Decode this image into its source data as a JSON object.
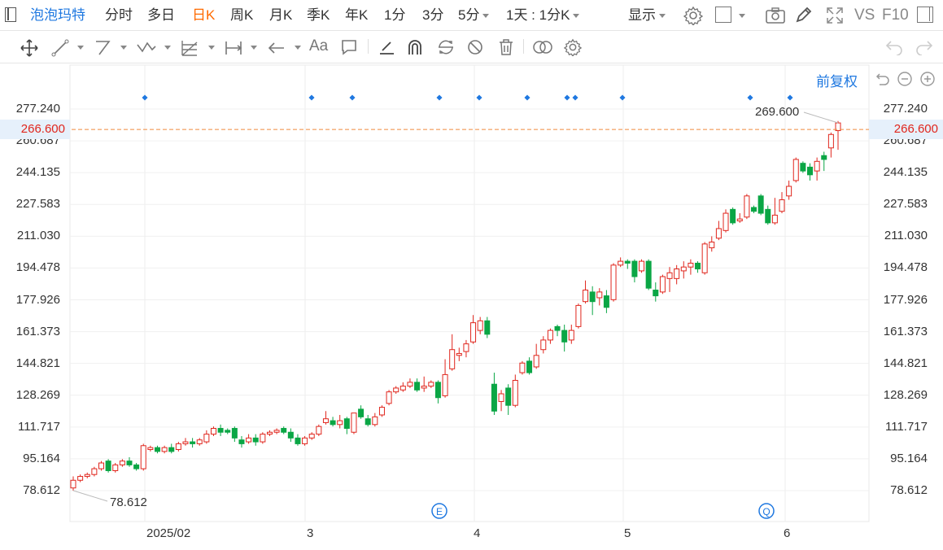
{
  "toolbar": {
    "title": "泡泡玛特",
    "periods": [
      "分时",
      "多日",
      "日K",
      "周K",
      "月K",
      "季K",
      "年K",
      "1分",
      "3分",
      "5分"
    ],
    "active_period": "日K",
    "period_extra": "1天 : 1分K",
    "display_label": "显示",
    "vs_label": "VS",
    "f10_label": "F10"
  },
  "chart_header": {
    "adjust_label": "前复权"
  },
  "chart_data": {
    "type": "candlestick",
    "y_ticks": [
      "277.240",
      "260.687",
      "244.135",
      "227.583",
      "211.030",
      "194.478",
      "177.926",
      "161.373",
      "144.821",
      "128.269",
      "111.717",
      "95.164",
      "78.612"
    ],
    "ylim": [
      78.612,
      277.24
    ],
    "x_ticks": [
      "2025/02",
      "3",
      "4",
      "5",
      "6"
    ],
    "current_price": "266.600",
    "high_label": "269.600",
    "low_label": "78.612",
    "event_markers": [
      "E",
      "Q"
    ],
    "candles": [
      [
        80,
        84,
        78.6,
        86
      ],
      [
        84,
        86,
        83,
        87
      ],
      [
        86,
        87,
        85,
        88
      ],
      [
        87,
        90,
        86,
        91
      ],
      [
        90,
        93,
        89,
        94
      ],
      [
        94,
        89,
        88,
        95
      ],
      [
        89,
        92,
        88,
        93
      ],
      [
        92,
        94,
        91,
        95
      ],
      [
        94,
        92,
        91,
        96
      ],
      [
        92,
        90,
        89,
        93
      ],
      [
        90,
        102,
        89,
        103
      ],
      [
        100,
        101,
        99,
        102
      ],
      [
        101,
        99,
        98,
        102
      ],
      [
        99,
        101,
        98,
        102
      ],
      [
        101,
        99,
        98,
        103
      ],
      [
        100,
        103,
        99,
        104
      ],
      [
        103,
        104,
        102,
        106
      ],
      [
        104,
        103,
        101,
        106
      ],
      [
        103,
        105,
        102,
        106
      ],
      [
        104,
        108,
        103,
        110
      ],
      [
        108,
        111,
        107,
        112
      ],
      [
        111,
        109,
        107,
        113
      ],
      [
        110,
        109,
        108,
        111
      ],
      [
        111,
        106,
        104,
        112
      ],
      [
        105,
        103,
        101,
        107
      ],
      [
        104,
        106,
        103,
        108
      ],
      [
        106,
        104,
        102,
        108
      ],
      [
        104,
        108,
        103,
        109
      ],
      [
        108,
        109,
        107,
        110
      ],
      [
        109,
        110,
        108,
        111
      ],
      [
        111,
        109,
        108,
        112
      ],
      [
        109,
        106,
        104,
        111
      ],
      [
        106,
        103,
        102,
        108
      ],
      [
        103,
        106,
        102,
        107
      ],
      [
        106,
        108,
        105,
        109
      ],
      [
        108,
        112,
        107,
        113
      ],
      [
        114,
        116,
        113,
        120
      ],
      [
        115,
        113,
        112,
        117
      ],
      [
        113,
        115,
        111,
        118
      ],
      [
        116,
        111,
        108,
        117
      ],
      [
        109,
        119,
        108,
        119
      ],
      [
        121,
        117,
        116,
        123
      ],
      [
        116,
        113,
        112,
        118
      ],
      [
        113,
        117,
        112,
        119
      ],
      [
        118,
        122,
        117,
        123
      ],
      [
        124,
        130,
        123,
        131
      ],
      [
        130,
        132,
        129,
        133
      ],
      [
        131,
        133,
        130,
        135
      ],
      [
        133,
        135,
        132,
        137
      ],
      [
        135,
        131,
        130,
        137
      ],
      [
        132,
        133,
        130,
        138
      ],
      [
        133,
        135,
        132,
        136
      ],
      [
        135,
        127,
        124,
        136
      ],
      [
        128,
        139,
        127,
        147
      ],
      [
        142,
        152,
        141,
        160
      ],
      [
        149,
        150,
        146,
        153
      ],
      [
        151,
        155,
        148,
        157
      ],
      [
        156,
        166,
        155,
        170
      ],
      [
        162,
        167,
        160,
        169
      ],
      [
        167,
        160,
        158,
        169
      ],
      [
        134,
        120,
        118,
        140
      ],
      [
        125,
        129,
        120,
        131
      ],
      [
        132,
        123,
        118,
        134
      ],
      [
        123,
        136,
        122,
        139
      ],
      [
        140,
        145,
        139,
        146
      ],
      [
        146,
        140,
        139,
        148
      ],
      [
        143,
        149,
        142,
        155
      ],
      [
        152,
        157,
        150,
        159
      ],
      [
        157,
        162,
        155,
        163
      ],
      [
        164,
        162,
        159,
        165
      ],
      [
        162,
        156,
        151,
        165
      ],
      [
        157,
        162,
        155,
        165
      ],
      [
        164,
        175,
        163,
        176
      ],
      [
        177,
        183,
        176,
        188
      ],
      [
        182,
        177,
        170,
        185
      ],
      [
        179,
        182,
        175,
        184
      ],
      [
        180,
        174,
        171,
        183
      ],
      [
        178,
        196,
        177,
        197
      ],
      [
        196,
        198,
        195,
        200
      ],
      [
        198,
        197,
        194,
        199
      ],
      [
        198,
        190,
        187,
        199
      ],
      [
        193,
        198,
        192,
        199
      ],
      [
        198,
        184,
        183,
        199
      ],
      [
        183,
        180,
        177,
        187
      ],
      [
        182,
        190,
        181,
        191
      ],
      [
        189,
        192,
        182,
        195
      ],
      [
        189,
        194,
        186,
        196
      ],
      [
        193,
        195,
        189,
        198
      ],
      [
        195,
        197,
        191,
        199
      ],
      [
        197,
        194,
        192,
        198
      ],
      [
        192,
        207,
        191,
        208
      ],
      [
        205,
        208,
        203,
        211
      ],
      [
        210,
        215,
        209,
        219
      ],
      [
        214,
        223,
        213,
        225
      ],
      [
        225,
        218,
        217,
        226
      ],
      [
        219,
        220,
        218,
        223
      ],
      [
        221,
        232,
        220,
        233
      ],
      [
        226,
        224,
        223,
        227
      ],
      [
        232,
        223,
        222,
        233
      ],
      [
        225,
        218,
        217,
        227
      ],
      [
        218,
        222,
        217,
        231
      ],
      [
        224,
        230,
        223,
        234
      ],
      [
        232,
        237,
        230,
        240
      ],
      [
        240,
        251,
        239,
        252
      ],
      [
        249,
        245,
        244,
        250
      ],
      [
        247,
        243,
        240,
        249
      ],
      [
        245,
        250,
        240,
        252
      ],
      [
        253,
        251,
        245,
        255
      ],
      [
        257,
        264,
        252,
        265
      ],
      [
        266,
        270,
        256,
        271
      ]
    ]
  }
}
